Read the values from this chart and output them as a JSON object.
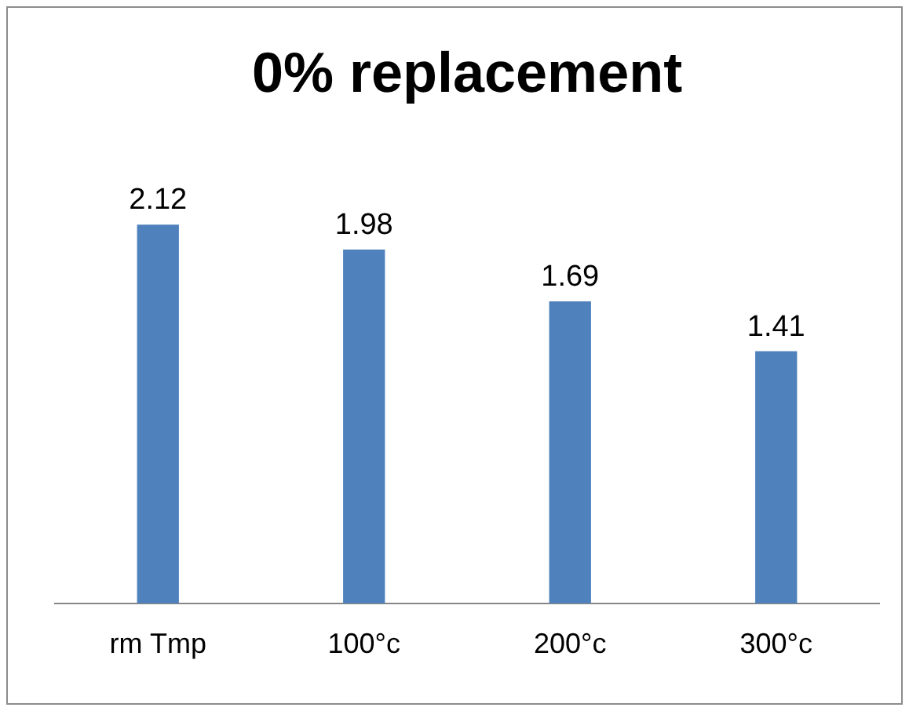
{
  "chart_data": {
    "type": "bar",
    "title": "0% replacement",
    "categories": [
      "rm Tmp",
      "100°c",
      "200°c",
      "300°c"
    ],
    "values": [
      2.12,
      1.98,
      1.69,
      1.41
    ],
    "color": "#4f81bd",
    "data_labels": true,
    "grid": false,
    "legend": false
  }
}
